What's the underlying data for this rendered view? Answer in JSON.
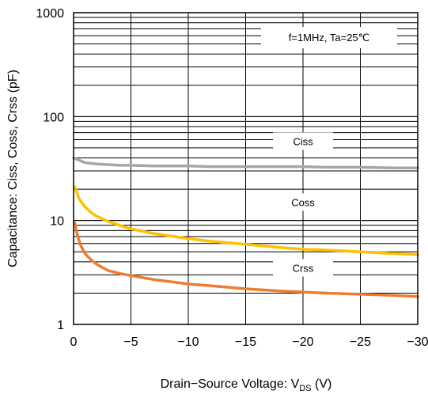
{
  "chart_data": {
    "type": "line",
    "xlabel_main": "Drain−Source Voltage: V",
    "xlabel_sub": "DS",
    "xlabel_unit": " (V)",
    "ylabel": "Capacitance: Ciss, Coss, Crss (pF)",
    "conditions": "f=1MHz, Ta=25℃",
    "yscale": "log",
    "xlim": [
      0,
      -30
    ],
    "ylim": [
      1,
      1000
    ],
    "grid": true,
    "x_ticks": [
      0,
      -5,
      -10,
      -15,
      -20,
      -25,
      -30
    ],
    "x_tick_labels": [
      "0",
      "−5",
      "−10",
      "−15",
      "−20",
      "−25",
      "−30"
    ],
    "y_ticks": [
      1,
      10,
      100,
      1000
    ],
    "y_tick_labels": [
      "1",
      "10",
      "100",
      "1000"
    ],
    "series": [
      {
        "name": "Ciss",
        "color": "#a6a6a6",
        "x": [
          0,
          -0.5,
          -1,
          -2,
          -3,
          -4,
          -5,
          -7,
          -10,
          -12,
          -15,
          -18,
          -20,
          -22,
          -25,
          -28,
          -30
        ],
        "y": [
          40,
          38,
          36,
          35,
          34.5,
          34,
          34,
          33.5,
          33.5,
          33,
          33,
          33,
          33,
          32.5,
          32.5,
          32,
          32
        ]
      },
      {
        "name": "Coss",
        "color": "#ffc000",
        "x": [
          -0.1,
          -0.5,
          -1,
          -1.5,
          -2,
          -3,
          -4,
          -5,
          -7,
          -10,
          -12,
          -15,
          -18,
          -20,
          -22,
          -25,
          -28,
          -30
        ],
        "y": [
          21,
          16,
          13.5,
          12,
          11,
          9.8,
          9,
          8.3,
          7.5,
          6.7,
          6.3,
          5.9,
          5.5,
          5.3,
          5.2,
          5.0,
          4.8,
          4.7
        ]
      },
      {
        "name": "Crss",
        "color": "#ed7d31",
        "x": [
          -0.1,
          -0.3,
          -0.6,
          -1,
          -1.5,
          -2,
          -3,
          -4,
          -5,
          -7,
          -10,
          -12,
          -15,
          -18,
          -20,
          -22,
          -25,
          -28,
          -30
        ],
        "y": [
          9.5,
          7.5,
          5.8,
          4.8,
          4.2,
          3.8,
          3.3,
          3.1,
          2.95,
          2.7,
          2.45,
          2.35,
          2.2,
          2.1,
          2.05,
          2.0,
          1.95,
          1.9,
          1.85
        ]
      }
    ]
  }
}
